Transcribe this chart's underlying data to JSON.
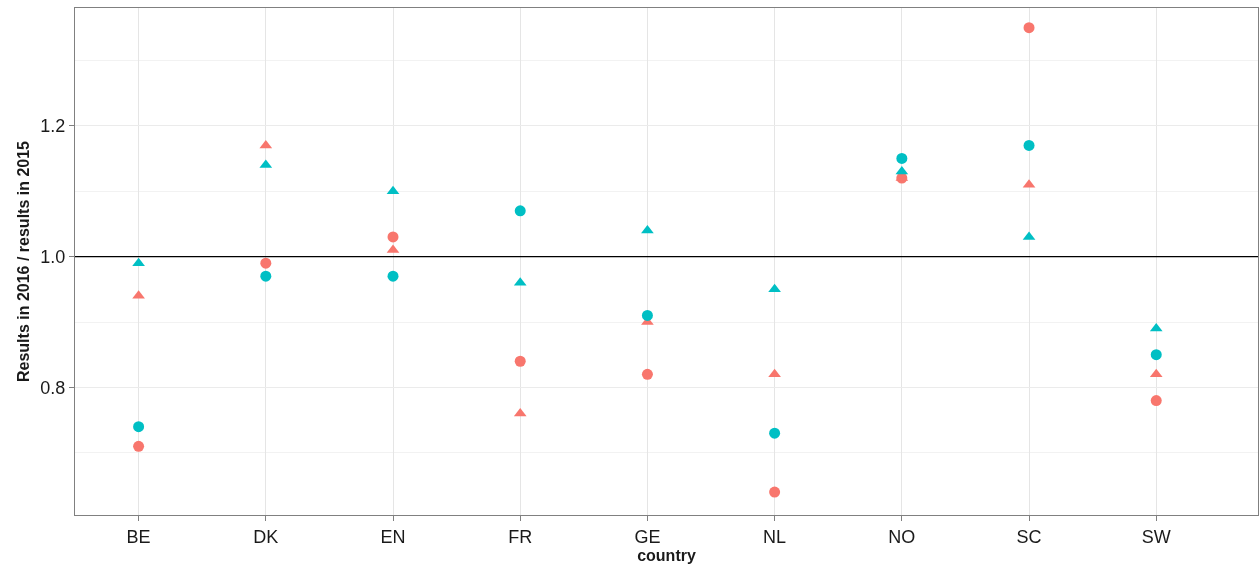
{
  "chart_data": {
    "type": "scatter",
    "xlabel": "country",
    "ylabel": "Results in 2016 / results in 2015",
    "categories": [
      "BE",
      "DK",
      "EN",
      "FR",
      "GE",
      "NL",
      "NO",
      "SC",
      "SW"
    ],
    "series": [
      {
        "color": "#f8766d",
        "marker": "circle",
        "values": [
          0.71,
          0.99,
          1.03,
          0.84,
          0.82,
          0.64,
          1.12,
          1.35,
          0.78
        ]
      },
      {
        "color": "#f8766d",
        "marker": "triangle",
        "values": [
          0.94,
          1.17,
          1.01,
          0.76,
          0.9,
          0.82,
          1.12,
          1.11,
          0.82
        ]
      },
      {
        "color": "#00bfc4",
        "marker": "circle",
        "values": [
          0.74,
          0.97,
          0.97,
          1.07,
          0.91,
          0.73,
          1.15,
          1.17,
          0.85
        ]
      },
      {
        "color": "#00bfc4",
        "marker": "triangle",
        "values": [
          0.99,
          1.14,
          1.1,
          0.96,
          1.04,
          0.95,
          1.13,
          1.03,
          0.89
        ]
      }
    ],
    "ylim": [
      0.605,
      1.38
    ],
    "yticks": [
      {
        "value": 0.7,
        "label": null
      },
      {
        "value": 0.8,
        "label": "0.8"
      },
      {
        "value": 0.9,
        "label": null
      },
      {
        "value": 1.0,
        "label": "1.0"
      },
      {
        "value": 1.1,
        "label": null
      },
      {
        "value": 1.2,
        "label": "1.2"
      },
      {
        "value": 1.3,
        "label": null
      }
    ],
    "ref_lines": [
      {
        "axis": "y",
        "value": 1.0,
        "color": "#000000"
      }
    ],
    "grid": true
  }
}
